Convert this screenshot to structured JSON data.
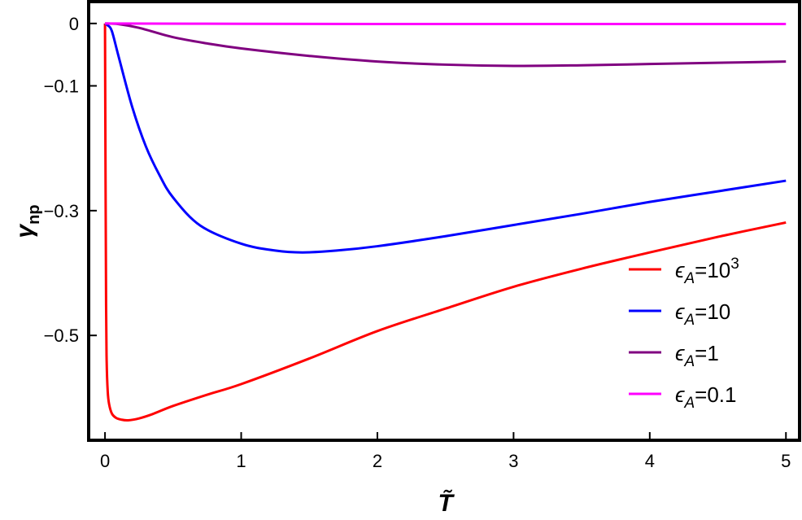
{
  "chart_data": {
    "type": "line",
    "title": "",
    "xlabel": "T̃",
    "ylabel": "γ",
    "ylabel_sub": "np",
    "xlim": [
      -0.12,
      5.1
    ],
    "ylim": [
      -0.668,
      0.035
    ],
    "xticks": [
      0,
      1,
      2,
      3,
      4,
      5
    ],
    "xtick_labels": [
      "0",
      "1",
      "2",
      "3",
      "4",
      "5"
    ],
    "yticks": [
      0,
      -0.1,
      -0.3,
      -0.5
    ],
    "ytick_labels": [
      "0",
      "−0.1",
      "−0.3",
      "−0.5"
    ],
    "grid": false,
    "legend_position": "bottom-right",
    "series": [
      {
        "name": "ϵA=10^3",
        "label_main": "ϵ",
        "label_sub": "A",
        "label_rest": "=10",
        "label_sup": "3",
        "color": "#ff0000",
        "x": [
          0,
          0.004,
          0.008,
          0.012,
          0.02,
          0.03,
          0.05,
          0.08,
          0.12,
          0.17,
          0.25,
          0.35,
          0.5,
          0.75,
          1,
          1.5,
          2,
          2.5,
          3,
          3.5,
          4,
          4.5,
          5
        ],
        "y": [
          0,
          -0.25,
          -0.45,
          -0.54,
          -0.59,
          -0.61,
          -0.625,
          -0.632,
          -0.635,
          -0.636,
          -0.633,
          -0.626,
          -0.613,
          -0.595,
          -0.578,
          -0.537,
          -0.493,
          -0.457,
          -0.422,
          -0.393,
          -0.367,
          -0.342,
          -0.319
        ]
      },
      {
        "name": "ϵA=10",
        "label_main": "ϵ",
        "label_sub": "A",
        "label_rest": "=10",
        "label_sup": "",
        "color": "#0000ff",
        "x": [
          0,
          0.02,
          0.05,
          0.1,
          0.2,
          0.3,
          0.4,
          0.5,
          0.7,
          1,
          1.25,
          1.45,
          1.7,
          2,
          2.5,
          3,
          3.5,
          4,
          4.5,
          5
        ],
        "y": [
          0,
          -0.003,
          -0.012,
          -0.053,
          -0.134,
          -0.197,
          -0.243,
          -0.279,
          -0.324,
          -0.353,
          -0.364,
          -0.367,
          -0.364,
          -0.357,
          -0.341,
          -0.323,
          -0.305,
          -0.286,
          -0.269,
          -0.252
        ]
      },
      {
        "name": "ϵA=1",
        "label_main": "ϵ",
        "label_sub": "A",
        "label_rest": "=1",
        "label_sup": "",
        "color": "#800080",
        "x": [
          0,
          0.1,
          0.25,
          0.5,
          0.75,
          1,
          1.5,
          2,
          2.5,
          3,
          3.5,
          4,
          4.5,
          5
        ],
        "y": [
          0,
          -0.001,
          -0.007,
          -0.022,
          -0.032,
          -0.04,
          -0.052,
          -0.061,
          -0.066,
          -0.068,
          -0.067,
          -0.065,
          -0.063,
          -0.061
        ]
      },
      {
        "name": "ϵA=0.1",
        "label_main": "ϵ",
        "label_sub": "A",
        "label_rest": "=0.1",
        "label_sup": "",
        "color": "#ff00ff",
        "x": [
          0,
          1,
          2,
          3,
          4,
          5
        ],
        "y": [
          0,
          -0.0005,
          -0.0008,
          -0.0009,
          -0.0009,
          -0.0009
        ]
      }
    ]
  }
}
